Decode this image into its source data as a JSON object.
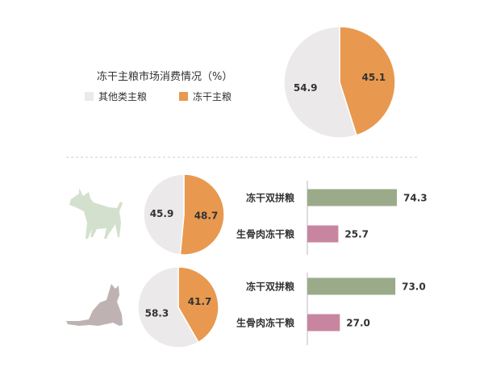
{
  "colors": {
    "gray": "#ebe9ea",
    "orange": "#e8994f",
    "green_bar": "#9bab8a",
    "pink_bar": "#c885a0",
    "dog": "#d3e0cd",
    "cat": "#bfb2b2",
    "axis": "#bbbbbb",
    "divider": "#cccccc",
    "text": "#333333"
  },
  "chart_data": [
    {
      "type": "pie",
      "title": "冻干主粮市场消费情况（%）",
      "legend": [
        {
          "label": "其他类主粮",
          "color": "#ebe9ea"
        },
        {
          "label": "冻干主粮",
          "color": "#e8994f"
        }
      ],
      "slices": [
        {
          "label": "冻干主粮",
          "value": 45.1,
          "text": "45.1",
          "color": "#e8994f"
        },
        {
          "label": "其他类主粮",
          "value": 54.9,
          "text": "54.9",
          "color": "#ebe9ea"
        }
      ]
    },
    {
      "type": "pie",
      "icon": "dog-icon",
      "slices": [
        {
          "value": 48.7,
          "text": "48.7",
          "color": "#e8994f"
        },
        {
          "value": 45.9,
          "text": "45.9",
          "color": "#ebe9ea"
        }
      ]
    },
    {
      "type": "bar",
      "orientation": "horizontal",
      "categories": [
        "冻干双拼粮",
        "生骨肉冻干粮"
      ],
      "values": [
        74.3,
        25.7
      ],
      "value_texts": [
        "74.3",
        "25.7"
      ],
      "colors": [
        "#9bab8a",
        "#c885a0"
      ]
    },
    {
      "type": "pie",
      "icon": "cat-icon",
      "slices": [
        {
          "value": 41.7,
          "text": "41.7",
          "color": "#e8994f"
        },
        {
          "value": 58.3,
          "text": "58.3",
          "color": "#ebe9ea"
        }
      ]
    },
    {
      "type": "bar",
      "orientation": "horizontal",
      "categories": [
        "冻干双拼粮",
        "生骨肉冻干粮"
      ],
      "values": [
        73.0,
        27.0
      ],
      "value_texts": [
        "73.0",
        "27.0"
      ],
      "colors": [
        "#9bab8a",
        "#c885a0"
      ]
    }
  ]
}
